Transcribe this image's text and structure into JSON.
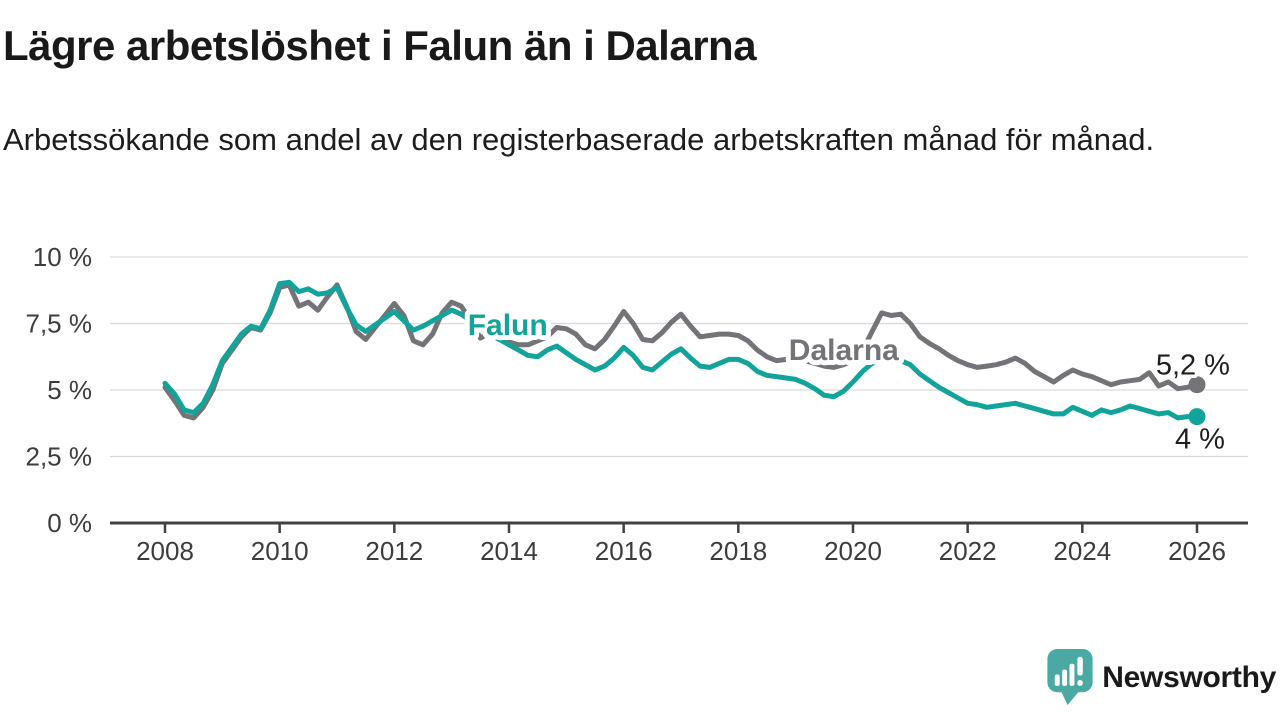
{
  "header": {
    "title": "Lägre arbetslöshet i Falun än i Dalarna",
    "subtitle": "Arbetssökande som andel av den registerbaserade arbetskraften månad för månad."
  },
  "chart_data": {
    "type": "line",
    "title": "Lägre arbetslöshet i Falun än i Dalarna",
    "subtitle": "Arbetssökande som andel av den registerbaserade arbetskraften månad för månad.",
    "xlim": [
      2008,
      2026
    ],
    "ylim": [
      0,
      10
    ],
    "grid": "horizontal",
    "x_start": 2008,
    "x_step": 0.166667,
    "x_ticks": [
      2008,
      2010,
      2012,
      2014,
      2016,
      2018,
      2020,
      2022,
      2024,
      2026
    ],
    "x_tick_labels": [
      "2008",
      "2010",
      "2012",
      "2014",
      "2016",
      "2018",
      "2020",
      "2022",
      "2024",
      "2026"
    ],
    "y_ticks": [
      0,
      2.5,
      5,
      7.5,
      10
    ],
    "y_tick_labels": [
      "0 %",
      "2,5 %",
      "5 %",
      "7,5 %",
      "10 %"
    ],
    "series": [
      {
        "name": "Dalarna",
        "color": "#747478",
        "label": {
          "text": "Dalarna",
          "x": 2018.88,
          "y": 6.13
        },
        "end_label": {
          "text": "5,2 %",
          "dx": 33,
          "dy": -10,
          "anchor": "end"
        },
        "end_value": 5.2,
        "values": [
          5.1,
          4.6,
          4.05,
          3.95,
          4.35,
          5.0,
          6.0,
          6.5,
          7.0,
          7.35,
          7.25,
          7.9,
          8.85,
          8.95,
          8.15,
          8.3,
          8.0,
          8.5,
          8.95,
          8.15,
          7.2,
          6.9,
          7.35,
          7.8,
          8.25,
          7.8,
          6.85,
          6.7,
          7.1,
          7.9,
          8.3,
          8.15,
          7.6,
          6.95,
          7.15,
          6.9,
          6.8,
          6.7,
          6.7,
          6.85,
          7.0,
          7.35,
          7.3,
          7.1,
          6.7,
          6.55,
          6.9,
          7.4,
          7.95,
          7.5,
          6.9,
          6.85,
          7.15,
          7.55,
          7.85,
          7.4,
          7.0,
          7.05,
          7.1,
          7.1,
          7.05,
          6.85,
          6.5,
          6.25,
          6.1,
          6.15,
          6.15,
          6.1,
          6.0,
          5.9,
          5.85,
          5.95,
          6.1,
          6.5,
          7.2,
          7.9,
          7.8,
          7.85,
          7.5,
          7.0,
          6.75,
          6.55,
          6.3,
          6.1,
          5.95,
          5.85,
          5.9,
          5.95,
          6.05,
          6.2,
          6.0,
          5.7,
          5.5,
          5.3,
          5.55,
          5.75,
          5.6,
          5.5,
          5.35,
          5.2,
          5.3,
          5.35,
          5.4,
          5.65,
          5.15,
          5.3,
          5.05,
          5.1,
          5.2
        ]
      },
      {
        "name": "Falun",
        "color": "#12a49a",
        "label": {
          "text": "Falun",
          "x": 2013.28,
          "y": 7.07
        },
        "end_label": {
          "text": "4 %",
          "dx": 3,
          "dy": 32,
          "anchor": "middle"
        },
        "end_value": 4.0,
        "values": [
          5.25,
          4.85,
          4.25,
          4.15,
          4.5,
          5.2,
          6.1,
          6.6,
          7.1,
          7.4,
          7.3,
          8.0,
          9.0,
          9.05,
          8.7,
          8.8,
          8.6,
          8.65,
          8.85,
          8.1,
          7.45,
          7.2,
          7.45,
          7.7,
          7.95,
          7.6,
          7.25,
          7.4,
          7.6,
          7.8,
          8.0,
          7.85,
          7.6,
          7.3,
          7.1,
          6.9,
          6.7,
          6.5,
          6.3,
          6.25,
          6.5,
          6.65,
          6.4,
          6.15,
          5.95,
          5.75,
          5.9,
          6.2,
          6.6,
          6.3,
          5.85,
          5.75,
          6.05,
          6.35,
          6.55,
          6.2,
          5.9,
          5.85,
          6.0,
          6.15,
          6.15,
          6.0,
          5.7,
          5.55,
          5.5,
          5.45,
          5.4,
          5.25,
          5.05,
          4.8,
          4.75,
          4.95,
          5.3,
          5.7,
          6.0,
          6.1,
          6.1,
          6.1,
          5.95,
          5.6,
          5.35,
          5.1,
          4.9,
          4.7,
          4.5,
          4.45,
          4.35,
          4.4,
          4.45,
          4.5,
          4.4,
          4.3,
          4.2,
          4.1,
          4.1,
          4.35,
          4.2,
          4.05,
          4.25,
          4.15,
          4.25,
          4.4,
          4.3,
          4.2,
          4.1,
          4.15,
          3.95,
          4.0,
          4.0
        ]
      }
    ],
    "legend": "inline-labels"
  },
  "branding": {
    "wordmark": "Newsworthy",
    "icon": "speech-bubble-bar-chart-exclamation",
    "icon_color": "#4ba9a3",
    "text_color": "#2fa29c"
  }
}
